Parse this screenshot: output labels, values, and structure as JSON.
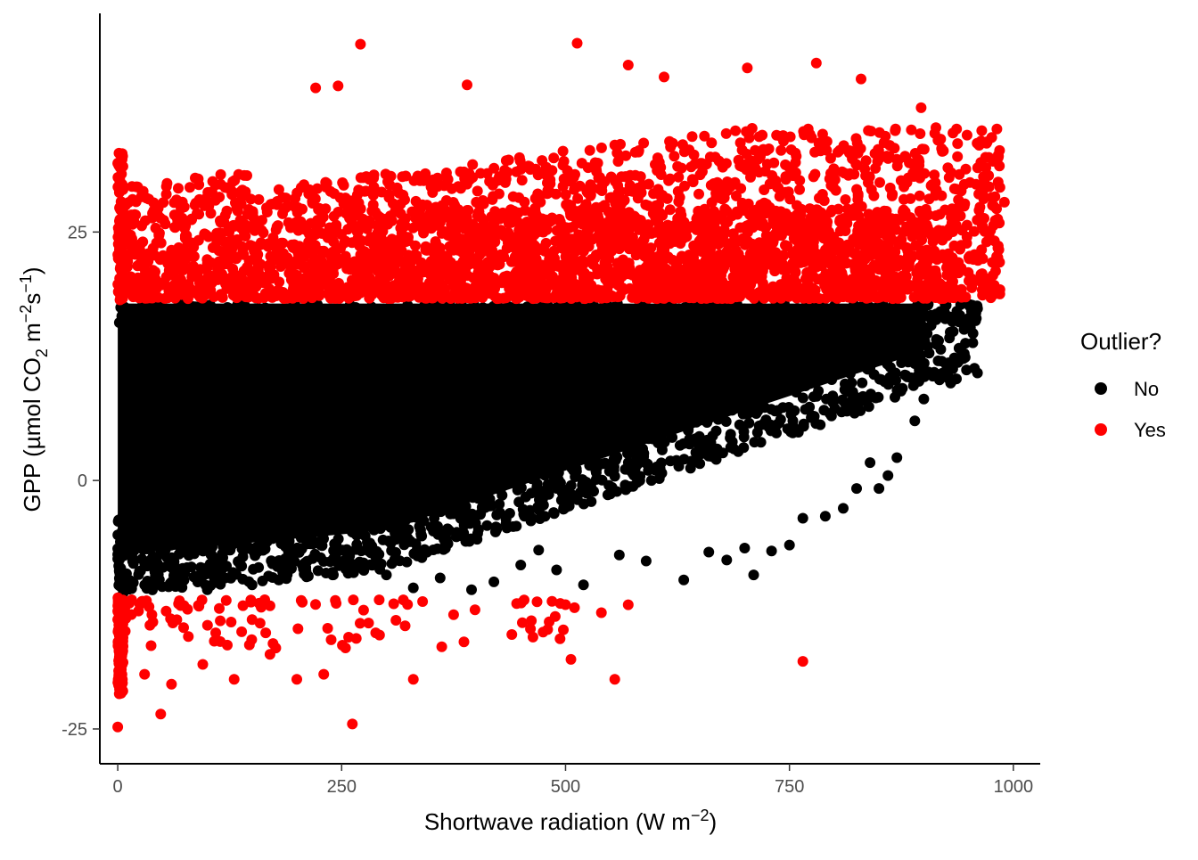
{
  "chart_data": {
    "type": "scatter",
    "title": "",
    "xlabel": "Shortwave radiation (W m",
    "xlabel_unit_sup": "−2",
    "xlabel_close": ")",
    "ylabel": "GPP (µmol CO",
    "ylabel_sub": "2",
    "ylabel_mid": " m",
    "ylabel_sup1": "−2",
    "ylabel_s": "s",
    "ylabel_sup2": "−1",
    "ylabel_close": ")",
    "xlim": [
      -20,
      1030
    ],
    "ylim": [
      -28.5,
      47
    ],
    "x_ticks": [
      0,
      250,
      500,
      750,
      1000
    ],
    "x_tick_labels": [
      "0",
      "250",
      "500",
      "750",
      "1000"
    ],
    "y_ticks": [
      -25,
      0,
      25
    ],
    "y_tick_labels": [
      "-25",
      "0",
      "25"
    ],
    "grid": false,
    "outlier_thresholds": {
      "upper": 17.8,
      "lower": -11.5
    },
    "legend": {
      "title": "Outlier?",
      "placement": "right",
      "entries": [
        {
          "label": "No",
          "color": "#000000"
        },
        {
          "label": "Yes",
          "color": "#ff0000"
        }
      ]
    },
    "series": [
      {
        "name": "No",
        "color": "#000000",
        "points_description": "dense cloud between the outlier thresholds",
        "points": [
          [
            960,
            17.3
          ],
          [
            955,
            14.8
          ],
          [
            945,
            15.2
          ],
          [
            930,
            9.8
          ],
          [
            920,
            12.0
          ],
          [
            910,
            10.5
          ],
          [
            900,
            8.2
          ],
          [
            890,
            6.0
          ],
          [
            870,
            2.3
          ],
          [
            860,
            0.5
          ],
          [
            850,
            -0.8
          ],
          [
            840,
            1.8
          ],
          [
            825,
            -0.8
          ],
          [
            810,
            -2.8
          ],
          [
            790,
            -3.6
          ],
          [
            765,
            -3.8
          ],
          [
            750,
            -6.5
          ],
          [
            730,
            -7.1
          ],
          [
            710,
            -9.5
          ],
          [
            700,
            -6.8
          ],
          [
            680,
            -8.0
          ],
          [
            660,
            -7.2
          ],
          [
            632,
            -10.0
          ],
          [
            590,
            -8.1
          ],
          [
            560,
            -7.5
          ],
          [
            520,
            -10.5
          ],
          [
            490,
            -9.0
          ],
          [
            470,
            -7.0
          ],
          [
            450,
            -8.5
          ],
          [
            420,
            -10.2
          ],
          [
            395,
            -11.0
          ],
          [
            360,
            -9.8
          ],
          [
            330,
            -10.8
          ],
          [
            300,
            -9.5
          ],
          [
            270,
            -8.2
          ],
          [
            240,
            -9.5
          ],
          [
            210,
            -8.8
          ],
          [
            180,
            -10.0
          ],
          [
            150,
            -10.5
          ],
          [
            120,
            -9.8
          ],
          [
            100,
            -11.0
          ],
          [
            70,
            -10.5
          ]
        ]
      },
      {
        "name": "Yes",
        "color": "#ff0000",
        "points": [
          [
            271,
            43.9
          ],
          [
            513,
            44.0
          ],
          [
            703,
            41.5
          ],
          [
            780,
            42.0
          ],
          [
            570,
            41.8
          ],
          [
            610,
            40.6
          ],
          [
            390,
            39.8
          ],
          [
            221,
            39.5
          ],
          [
            246,
            39.7
          ],
          [
            830,
            40.4
          ],
          [
            897,
            37.5
          ],
          [
            985,
            29.5
          ],
          [
            990,
            28.0
          ],
          [
            985,
            19.2
          ],
          [
            262,
            -24.5
          ],
          [
            48,
            -23.5
          ],
          [
            0,
            -24.8
          ],
          [
            765,
            -18.2
          ],
          [
            555,
            -20.0
          ],
          [
            506,
            -18.0
          ],
          [
            480,
            -15.0
          ],
          [
            440,
            -15.5
          ],
          [
            375,
            -13.5
          ],
          [
            330,
            -20.0
          ],
          [
            230,
            -19.5
          ],
          [
            200,
            -20.0
          ],
          [
            170,
            -17.5
          ],
          [
            130,
            -20.0
          ],
          [
            95,
            -18.5
          ],
          [
            60,
            -20.5
          ],
          [
            30,
            -19.5
          ],
          [
            5,
            -18.5
          ],
          [
            4,
            -16.0
          ],
          [
            0,
            -14.0
          ],
          [
            2,
            -21.0
          ],
          [
            170,
            -12.6
          ],
          [
            150,
            -14.0
          ],
          [
            540,
            -13.3
          ],
          [
            570,
            -12.5
          ],
          [
            510,
            -12.8
          ]
        ]
      }
    ]
  }
}
